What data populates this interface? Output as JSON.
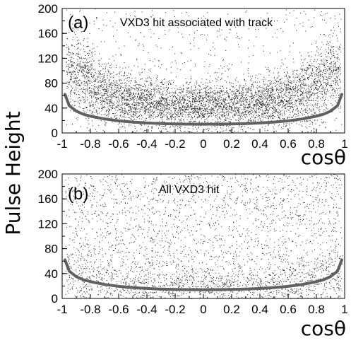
{
  "chart_data": {
    "ylabel": "Pulse Height",
    "colors": {
      "curve": "#606060",
      "points": "#202020"
    },
    "panels": [
      {
        "type": "scatter",
        "label": "(a)",
        "annotation": "VXD3 hit associated with track",
        "xlabel": "cosθ",
        "xlim": [
          -1.0,
          1.0
        ],
        "ylim": [
          0,
          200
        ],
        "xticks": [
          "-1",
          "-0.8",
          "-0.6",
          "-0.4",
          "-0.2",
          "0",
          "0.2",
          "0.4",
          "0.6",
          "0.8",
          "1"
        ],
        "yticks": [
          "0",
          "40",
          "80",
          "120",
          "160",
          "200"
        ],
        "curve": {
          "x": [
            -0.98,
            -0.95,
            -0.9,
            -0.85,
            -0.8,
            -0.7,
            -0.6,
            -0.5,
            -0.4,
            -0.3,
            -0.2,
            -0.1,
            0.0,
            0.1,
            0.2,
            0.3,
            0.4,
            0.5,
            0.6,
            0.7,
            0.8,
            0.85,
            0.9,
            0.95,
            0.98
          ],
          "y": [
            62,
            44,
            35,
            30,
            27,
            22.5,
            19.5,
            17.5,
            16,
            15,
            14.5,
            14.2,
            14,
            14.2,
            14.5,
            15,
            16,
            17.5,
            19.5,
            22.5,
            27,
            30,
            35,
            44,
            62
          ]
        },
        "density": {
          "center": 45,
          "spread": 18,
          "points": 5200,
          "background": 650
        }
      },
      {
        "type": "scatter",
        "label": "(b)",
        "annotation": "All VXD3 hit",
        "xlabel": "cosθ",
        "xlim": [
          -1.0,
          1.0
        ],
        "ylim": [
          0,
          200
        ],
        "xticks": [
          "-1",
          "-0.8",
          "-0.6",
          "-0.4",
          "-0.2",
          "0",
          "0.2",
          "0.4",
          "0.6",
          "0.8",
          "1"
        ],
        "yticks": [
          "0",
          "40",
          "80",
          "120",
          "160",
          "200"
        ],
        "curve": {
          "x": [
            -0.98,
            -0.95,
            -0.9,
            -0.85,
            -0.8,
            -0.7,
            -0.6,
            -0.5,
            -0.4,
            -0.3,
            -0.2,
            -0.1,
            0.0,
            0.1,
            0.2,
            0.3,
            0.4,
            0.5,
            0.6,
            0.7,
            0.8,
            0.85,
            0.9,
            0.95,
            0.98
          ],
          "y": [
            62,
            44,
            35,
            30,
            27,
            22.5,
            19.5,
            17.5,
            16,
            15,
            14.5,
            14.2,
            14,
            14.2,
            14.5,
            15,
            16,
            17.5,
            19.5,
            22.5,
            27,
            30,
            35,
            44,
            62
          ]
        },
        "density": {
          "center": 22,
          "spread": 12,
          "points": 900,
          "background": 2400
        }
      }
    ]
  }
}
